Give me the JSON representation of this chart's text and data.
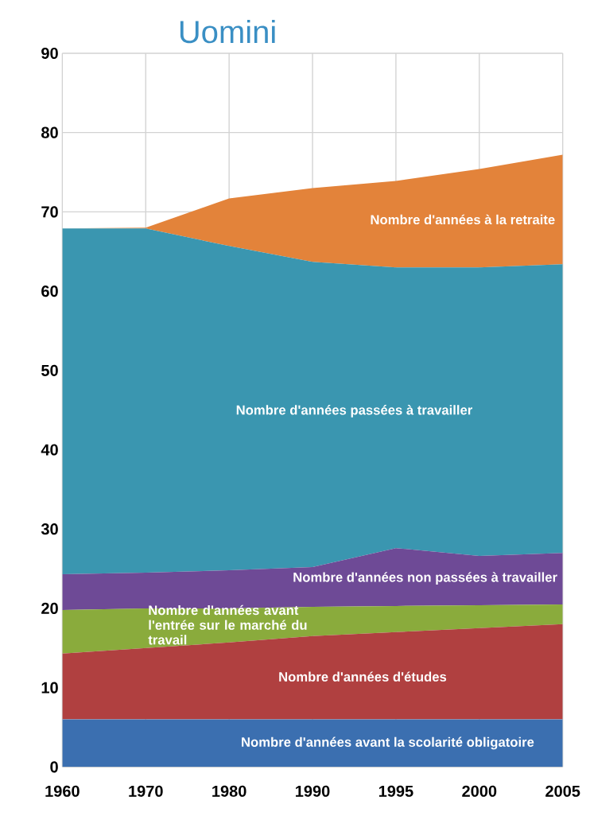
{
  "chart_data": {
    "type": "area",
    "stacked": true,
    "title": "Uomini",
    "categories": [
      "1960",
      "1970",
      "1980",
      "1990",
      "1995",
      "2000",
      "2005"
    ],
    "ylim": [
      0,
      90
    ],
    "yticks": [
      0,
      10,
      20,
      30,
      40,
      50,
      60,
      70,
      80,
      90
    ],
    "grid": true,
    "series": [
      {
        "name": "Nombre d'années avant la scolarité obligatoire",
        "color": "#3b6fb0",
        "values": [
          6,
          6,
          6,
          6,
          6,
          6,
          6
        ]
      },
      {
        "name": "Nombre d'années d'études",
        "color": "#b04040",
        "values": [
          8.3,
          9,
          9.7,
          10.5,
          11,
          11.5,
          12
        ]
      },
      {
        "name": "Nombre d'années avant l'entrée sur le marché du travail",
        "color": "#8aab3c",
        "values": [
          5.5,
          5,
          4.3,
          3.7,
          3.3,
          2.9,
          2.5
        ]
      },
      {
        "name": "Nombre d'années non passées à travailler",
        "color": "#6e4a96",
        "values": [
          4.5,
          4.5,
          4.8,
          5,
          7.3,
          6.2,
          6.5
        ]
      },
      {
        "name": "Nombre d'années passées à travailler",
        "color": "#3a96b0",
        "values": [
          43.6,
          43.4,
          40.9,
          38.5,
          35.4,
          36.4,
          36.4
        ]
      },
      {
        "name": "Nombre d'années à la retraite",
        "color": "#e3833a",
        "values": [
          0,
          0.1,
          6,
          9.3,
          10.9,
          12.4,
          13.8
        ]
      }
    ]
  }
}
